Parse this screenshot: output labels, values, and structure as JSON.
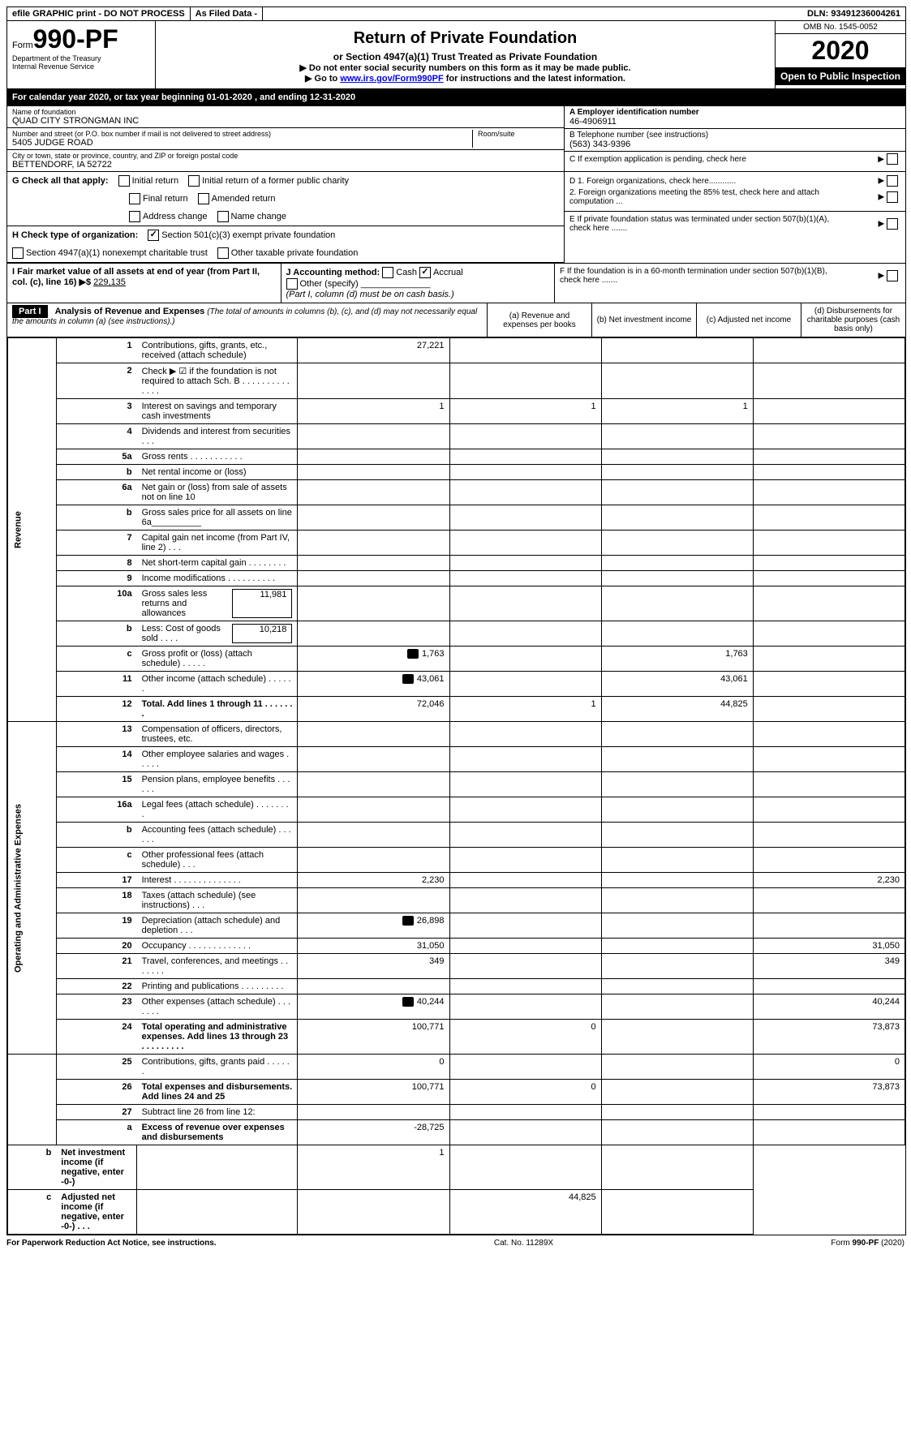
{
  "topbar": {
    "efile": "efile GRAPHIC print - DO NOT PROCESS",
    "asfiled": "As Filed Data -",
    "dln": "DLN: 93491236004261"
  },
  "header": {
    "form_prefix": "Form",
    "form_number": "990-PF",
    "dept1": "Department of the Treasury",
    "dept2": "Internal Revenue Service",
    "title": "Return of Private Foundation",
    "subtitle": "or Section 4947(a)(1) Trust Treated as Private Foundation",
    "note1": "▶ Do not enter social security numbers on this form as it may be made public.",
    "note2_prefix": "▶ Go to ",
    "note2_link": "www.irs.gov/Form990PF",
    "note2_suffix": " for instructions and the latest information.",
    "omb": "OMB No. 1545-0052",
    "year": "2020",
    "open": "Open to Public Inspection"
  },
  "calyear": "For calendar year 2020, or tax year beginning 01-01-2020          , and ending 12-31-2020",
  "info": {
    "name_label": "Name of foundation",
    "name": "QUAD CITY STRONGMAN INC",
    "addr_label": "Number and street (or P.O. box number if mail is not delivered to street address)",
    "addr": "5405 JUDGE ROAD",
    "room_label": "Room/suite",
    "city_label": "City or town, state or province, country, and ZIP or foreign postal code",
    "city": "BETTENDORF, IA  52722",
    "a_label": "A Employer identification number",
    "a_value": "46-4906911",
    "b_label": "B Telephone number (see instructions)",
    "b_value": "(563) 343-9396",
    "c_label": "C If exemption application is pending, check here"
  },
  "checks": {
    "g_label": "G Check all that apply:",
    "g1": "Initial return",
    "g2": "Initial return of a former public charity",
    "g3": "Final return",
    "g4": "Amended return",
    "g5": "Address change",
    "g6": "Name change",
    "h_label": "H Check type of organization:",
    "h1": "Section 501(c)(3) exempt private foundation",
    "h2": "Section 4947(a)(1) nonexempt charitable trust",
    "h3": "Other taxable private foundation",
    "i_label": "I Fair market value of all assets at end of year (from Part II, col. (c), line 16) ▶$ ",
    "i_value": "229,135",
    "j_label": "J Accounting method:",
    "j1": "Cash",
    "j2": "Accrual",
    "j3": "Other (specify)",
    "j_note": "(Part I, column (d) must be on cash basis.)",
    "d_label": "D 1. Foreign organizations, check here............",
    "d2_label": "2. Foreign organizations meeting the 85% test, check here and attach computation ...",
    "e_label": "E  If private foundation status was terminated under section 507(b)(1)(A), check here .......",
    "f_label": "F  If the foundation is in a 60-month termination under section 507(b)(1)(B), check here ......."
  },
  "part1": {
    "label": "Part I",
    "title": "Analysis of Revenue and Expenses",
    "note": "(The total of amounts in columns (b), (c), and (d) may not necessarily equal the amounts in column (a) (see instructions).)",
    "col_a": "(a) Revenue and expenses per books",
    "col_b": "(b) Net investment income",
    "col_c": "(c) Adjusted net income",
    "col_d": "(d) Disbursements for charitable purposes (cash basis only)"
  },
  "sidelabels": {
    "revenue": "Revenue",
    "expenses": "Operating and Administrative Expenses"
  },
  "rows": [
    {
      "n": "1",
      "d": "Contributions, gifts, grants, etc., received (attach schedule)",
      "a": "27,221",
      "b": "",
      "c": "",
      "dd": ""
    },
    {
      "n": "2",
      "d": "Check ▶ ☑ if the foundation is not required to attach Sch. B   . . . . . . . . . . . . . .",
      "a": "",
      "b": "",
      "c": "",
      "dd": ""
    },
    {
      "n": "3",
      "d": "Interest on savings and temporary cash investments",
      "a": "1",
      "b": "1",
      "c": "1",
      "dd": ""
    },
    {
      "n": "4",
      "d": "Dividends and interest from securities   .  .  .",
      "a": "",
      "b": "",
      "c": "",
      "dd": ""
    },
    {
      "n": "5a",
      "d": "Gross rents    .  .  .  .  .  .  .  .  .  .  .",
      "a": "",
      "b": "",
      "c": "",
      "dd": ""
    },
    {
      "n": "b",
      "d": "Net rental income or (loss)",
      "a": "",
      "b": "",
      "c": "",
      "dd": ""
    },
    {
      "n": "6a",
      "d": "Net gain or (loss) from sale of assets not on line 10",
      "a": "",
      "b": "",
      "c": "",
      "dd": ""
    },
    {
      "n": "b",
      "d": "Gross sales price for all assets on line 6a__________",
      "a": "",
      "b": "",
      "c": "",
      "dd": ""
    },
    {
      "n": "7",
      "d": "Capital gain net income (from Part IV, line 2)  .  .  .",
      "a": "",
      "b": "",
      "c": "",
      "dd": ""
    },
    {
      "n": "8",
      "d": "Net short-term capital gain  .  .  .  .  .  .  .  .",
      "a": "",
      "b": "",
      "c": "",
      "dd": ""
    },
    {
      "n": "9",
      "d": "Income modifications .  .  .  .  .  .  .  .  .  .",
      "a": "",
      "b": "",
      "c": "",
      "dd": ""
    },
    {
      "n": "10a",
      "d": "Gross sales less returns and allowances",
      "inline": "11,981",
      "a": "",
      "b": "",
      "c": "",
      "dd": ""
    },
    {
      "n": "b",
      "d": "Less: Cost of goods sold   .  .  .  .",
      "inline": "10,218",
      "a": "",
      "b": "",
      "c": "",
      "dd": ""
    },
    {
      "n": "c",
      "d": "Gross profit or (loss) (attach schedule)  .  .  .  .  .",
      "icon": true,
      "a": "1,763",
      "b": "",
      "c": "1,763",
      "dd": ""
    },
    {
      "n": "11",
      "d": "Other income (attach schedule)   .  .  .  .  .  .",
      "icon": true,
      "a": "43,061",
      "b": "",
      "c": "43,061",
      "dd": ""
    },
    {
      "n": "12",
      "d": "Total. Add lines 1 through 11  .  .  .  .  .  .  .",
      "bold": true,
      "a": "72,046",
      "b": "1",
      "c": "44,825",
      "dd": ""
    },
    {
      "n": "13",
      "d": "Compensation of officers, directors, trustees, etc.",
      "a": "",
      "b": "",
      "c": "",
      "dd": ""
    },
    {
      "n": "14",
      "d": "Other employee salaries and wages  .  .  .  .  .",
      "a": "",
      "b": "",
      "c": "",
      "dd": ""
    },
    {
      "n": "15",
      "d": "Pension plans, employee benefits  .  .  .  .  .  .",
      "a": "",
      "b": "",
      "c": "",
      "dd": ""
    },
    {
      "n": "16a",
      "d": "Legal fees (attach schedule) .  .  .  .  .  .  .  .",
      "a": "",
      "b": "",
      "c": "",
      "dd": ""
    },
    {
      "n": "b",
      "d": "Accounting fees (attach schedule)  .  .  .  .  .  .",
      "a": "",
      "b": "",
      "c": "",
      "dd": ""
    },
    {
      "n": "c",
      "d": "Other professional fees (attach schedule)   .  .  .",
      "a": "",
      "b": "",
      "c": "",
      "dd": ""
    },
    {
      "n": "17",
      "d": "Interest .  .  .  .  .  .  .  .  .  .  .  .  .  .",
      "a": "2,230",
      "b": "",
      "c": "",
      "dd": "2,230"
    },
    {
      "n": "18",
      "d": "Taxes (attach schedule) (see instructions)   .  .  .",
      "a": "",
      "b": "",
      "c": "",
      "dd": ""
    },
    {
      "n": "19",
      "d": "Depreciation (attach schedule) and depletion  .  .  .",
      "icon": true,
      "a": "26,898",
      "b": "",
      "c": "",
      "dd": ""
    },
    {
      "n": "20",
      "d": "Occupancy  .  .  .  .  .  .  .  .  .  .  .  .  .",
      "a": "31,050",
      "b": "",
      "c": "",
      "dd": "31,050"
    },
    {
      "n": "21",
      "d": "Travel, conferences, and meetings .  .  .  .  .  .  .",
      "a": "349",
      "b": "",
      "c": "",
      "dd": "349"
    },
    {
      "n": "22",
      "d": "Printing and publications .  .  .  .  .  .  .  .  .",
      "a": "",
      "b": "",
      "c": "",
      "dd": ""
    },
    {
      "n": "23",
      "d": "Other expenses (attach schedule) .  .  .  .  .  .  .",
      "icon": true,
      "a": "40,244",
      "b": "",
      "c": "",
      "dd": "40,244"
    },
    {
      "n": "24",
      "d": "Total operating and administrative expenses. Add lines 13 through 23  .  .  .  .  .  .  .  .  .",
      "bold": true,
      "a": "100,771",
      "b": "0",
      "c": "",
      "dd": "73,873"
    },
    {
      "n": "25",
      "d": "Contributions, gifts, grants paid   .  .  .  .  .  .",
      "a": "0",
      "b": "",
      "c": "",
      "dd": "0"
    },
    {
      "n": "26",
      "d": "Total expenses and disbursements. Add lines 24 and 25",
      "bold": true,
      "a": "100,771",
      "b": "0",
      "c": "",
      "dd": "73,873"
    },
    {
      "n": "27",
      "d": "Subtract line 26 from line 12:",
      "a": "",
      "b": "",
      "c": "",
      "dd": ""
    },
    {
      "n": "a",
      "d": "Excess of revenue over expenses and disbursements",
      "bold": true,
      "a": "-28,725",
      "b": "",
      "c": "",
      "dd": ""
    },
    {
      "n": "b",
      "d": "Net investment income (if negative, enter -0-)",
      "bold": true,
      "a": "",
      "b": "1",
      "c": "",
      "dd": ""
    },
    {
      "n": "c",
      "d": "Adjusted net income (if negative, enter -0-)  .  .  .",
      "bold": true,
      "a": "",
      "b": "",
      "c": "44,825",
      "dd": ""
    }
  ],
  "footer": {
    "left": "For Paperwork Reduction Act Notice, see instructions.",
    "center": "Cat. No. 11289X",
    "right": "Form 990-PF (2020)"
  }
}
